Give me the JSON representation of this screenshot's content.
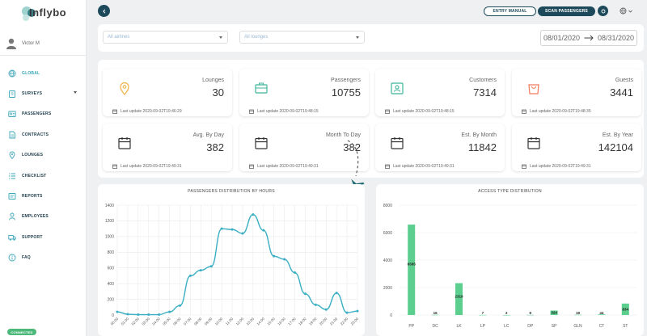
{
  "app": {
    "logo_text": "Inflybo",
    "user_name": "Victor M",
    "status": "CONNECTED"
  },
  "sidebar": {
    "items": [
      {
        "label": "GLOBAL",
        "icon": "globe-icon",
        "active": true
      },
      {
        "label": "SURVEYS",
        "icon": "clipboard-icon",
        "has_caret": true
      },
      {
        "label": "PASSENGERS",
        "icon": "id-card-icon"
      },
      {
        "label": "CONTRACTS",
        "icon": "document-icon"
      },
      {
        "label": "LOUNGES",
        "icon": "location-pin-icon"
      },
      {
        "label": "CHECKLIST",
        "icon": "list-icon"
      },
      {
        "label": "REPORTS",
        "icon": "report-icon"
      },
      {
        "label": "EMPLOYEES",
        "icon": "person-icon"
      },
      {
        "label": "SUPPORT",
        "icon": "truck-icon"
      },
      {
        "label": "FAQ",
        "icon": "info-icon"
      }
    ]
  },
  "header": {
    "entry_manual": "ENTRY MANUAL",
    "scan_passengers": "SCAN PASSENGERS"
  },
  "filters": {
    "airlines": "All airlines",
    "lounges": "All lounges",
    "date_from": "08/01/2020",
    "date_to": "08/31/2020"
  },
  "stats": [
    {
      "label": "Lounges",
      "value": "30",
      "updated": "Last update 2020-09-02T19:46:29",
      "icon": "location-pin-icon",
      "color": "#f0b44a"
    },
    {
      "label": "Passengers",
      "value": "10755",
      "updated": "Last update 2020-09-02T19:48:15",
      "icon": "briefcase-icon",
      "color": "#3fb59a"
    },
    {
      "label": "Customers",
      "value": "7314",
      "updated": "Last update 2020-09-02T19:48:15",
      "icon": "id-card-icon",
      "color": "#3fb59a"
    },
    {
      "label": "Guests",
      "value": "3441",
      "updated": "Last update 2020-09-02T19:48:35",
      "icon": "bag-icon",
      "color": "#f07a5a"
    },
    {
      "label": "Avg. By Day",
      "value": "382",
      "updated": "Last update 2020-09-02T19:49:31",
      "icon": "calendar-icon",
      "color": "#333333"
    },
    {
      "label": "Month To Day",
      "value": "382",
      "updated": "Last update 2020-09-02T19:49:31",
      "icon": "calendar-icon",
      "color": "#333333"
    },
    {
      "label": "Est. By Month",
      "value": "11842",
      "updated": "Last update 2020-09-02T19:49:31",
      "icon": "calendar-icon",
      "color": "#333333"
    },
    {
      "label": "Est. By Year",
      "value": "142104",
      "updated": "Last update 2020-09-02T19:49:31",
      "icon": "calendar-icon",
      "color": "#333333"
    }
  ],
  "chart_data": [
    {
      "type": "line",
      "title": "PASSENGERS DISTRIBUTION BY HOURS",
      "x": [
        "00:00",
        "01:00",
        "02:00",
        "03:00",
        "04:00",
        "05:00",
        "06:00",
        "07:00",
        "08:00",
        "09:00",
        "10:00",
        "11:00",
        "12:00",
        "13:00",
        "14:00",
        "15:00",
        "16:00",
        "17:00",
        "18:00",
        "19:00",
        "20:00",
        "21:00",
        "22:00",
        "23:00"
      ],
      "values": [
        40,
        10,
        5,
        5,
        5,
        40,
        120,
        500,
        570,
        620,
        1100,
        1090,
        1040,
        1280,
        1080,
        750,
        710,
        540,
        270,
        130,
        70,
        280,
        30,
        50
      ],
      "ylim": [
        0,
        1400
      ],
      "yticks": [
        0,
        200,
        400,
        600,
        800,
        1000,
        1200,
        1400
      ],
      "color": "#3aaec3",
      "grid": true
    },
    {
      "type": "bar",
      "title": "ACCESS TYPE DISTRIBUTION",
      "categories": [
        "PP",
        "DC",
        "LK",
        "LP",
        "LC",
        "DP",
        "SP",
        "GLN",
        "CT",
        "ST"
      ],
      "values": [
        6585,
        16,
        2319,
        7,
        2,
        9,
        324,
        19,
        44,
        834
      ],
      "labels": [
        "6585",
        "16",
        "2319",
        "7",
        "2",
        "9",
        "324",
        "19",
        "44",
        "834"
      ],
      "ylim": [
        0,
        8000
      ],
      "yticks": [
        0,
        2000,
        4000,
        6000,
        8000
      ],
      "color": "#5ccf8f",
      "grid": true
    }
  ]
}
